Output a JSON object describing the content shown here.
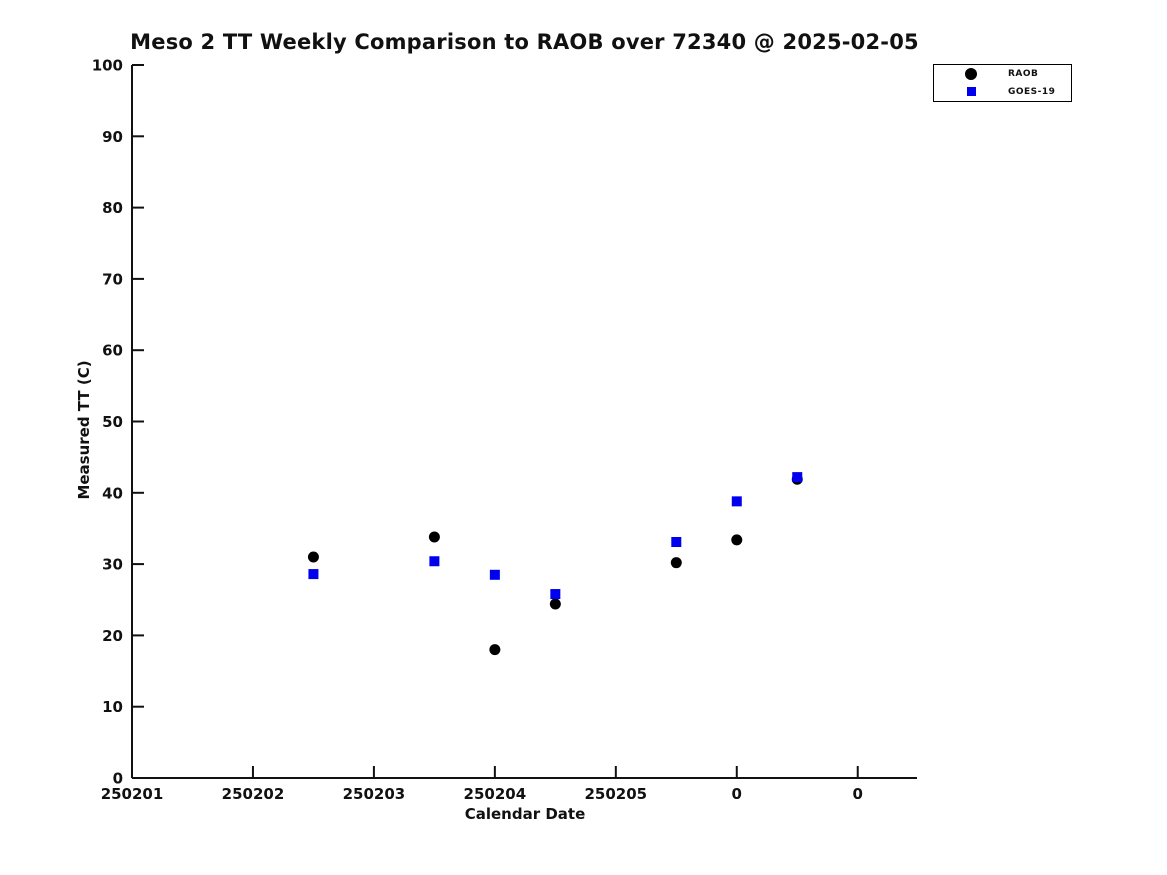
{
  "title": "Meso 2 TT Weekly Comparison to RAOB over 72340 @ 2025-02-05",
  "axes": {
    "xlabel": "Calendar Date",
    "ylabel": "Measured TT (C)"
  },
  "legend": {
    "position": "upper-right-outside-plot",
    "items": [
      {
        "label": "RAOB",
        "marker": "circle",
        "color": "#000000"
      },
      {
        "label": "GOES-19",
        "marker": "square",
        "color": "#0000ee"
      }
    ]
  },
  "chart_data": {
    "type": "scatter",
    "title": "Meso 2 TT Weekly Comparison to RAOB over 72340 @ 2025-02-05",
    "xlabel": "Calendar Date",
    "ylabel": "Measured TT (C)",
    "grid": false,
    "xlim": [
      0,
      6.49
    ],
    "ylim": [
      0,
      100
    ],
    "x_ticks": [
      {
        "pos": 0,
        "label": "250201"
      },
      {
        "pos": 1,
        "label": "250202"
      },
      {
        "pos": 2,
        "label": "250203"
      },
      {
        "pos": 3,
        "label": "250204"
      },
      {
        "pos": 4,
        "label": "250205"
      },
      {
        "pos": 5,
        "label": "0"
      },
      {
        "pos": 6,
        "label": "0"
      }
    ],
    "y_ticks": [
      0,
      10,
      20,
      30,
      40,
      50,
      60,
      70,
      80,
      90,
      100
    ],
    "x_units_note": "x positions are days after 250201; points fall on half-day (00Z/12Z) marks",
    "series": [
      {
        "name": "RAOB",
        "marker": "circle",
        "color": "#000000",
        "points": [
          {
            "x": 1.5,
            "y": 31.0
          },
          {
            "x": 2.5,
            "y": 33.8
          },
          {
            "x": 3.0,
            "y": 18.0
          },
          {
            "x": 3.5,
            "y": 24.4
          },
          {
            "x": 4.5,
            "y": 30.2
          },
          {
            "x": 5.0,
            "y": 33.4
          },
          {
            "x": 5.5,
            "y": 41.9
          }
        ]
      },
      {
        "name": "GOES-19",
        "marker": "square",
        "color": "#0000ee",
        "points": [
          {
            "x": 1.5,
            "y": 28.6
          },
          {
            "x": 2.5,
            "y": 30.4
          },
          {
            "x": 3.0,
            "y": 28.5
          },
          {
            "x": 3.5,
            "y": 25.8
          },
          {
            "x": 4.5,
            "y": 33.1
          },
          {
            "x": 5.0,
            "y": 38.8
          },
          {
            "x": 5.5,
            "y": 42.2
          }
        ]
      }
    ]
  }
}
